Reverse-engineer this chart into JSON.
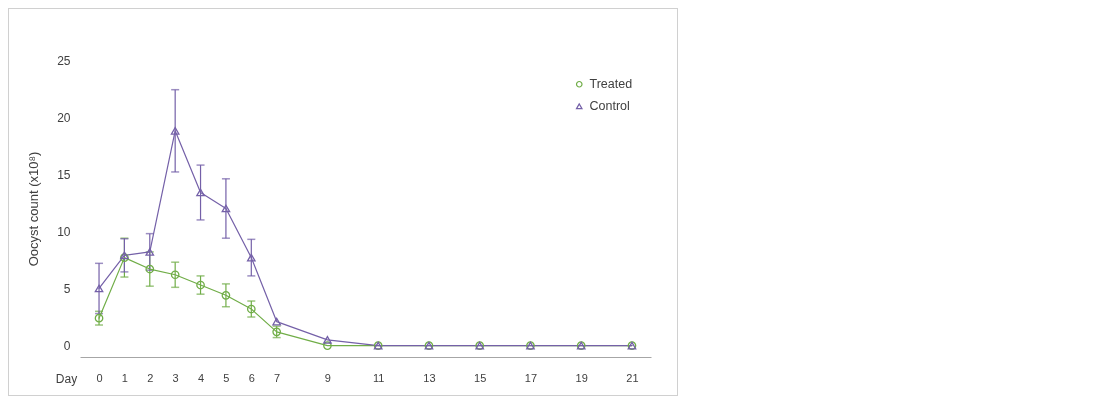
{
  "chart_data": {
    "type": "line",
    "xlabel": "Day",
    "ylabel": "Oocyst count (x10⁸)",
    "x": [
      0,
      1,
      2,
      3,
      4,
      5,
      6,
      7,
      9,
      11,
      13,
      15,
      17,
      19,
      21
    ],
    "xlim": [
      -0.75,
      21.75
    ],
    "xticks": [
      0,
      1,
      2,
      3,
      4,
      5,
      6,
      7,
      9,
      11,
      13,
      15,
      17,
      19,
      21
    ],
    "ylim": [
      -1,
      25
    ],
    "yticks": [
      0,
      5,
      10,
      15,
      20,
      25
    ],
    "legend": "top right",
    "series": [
      {
        "name": "Treated",
        "color": "#70ad47",
        "marker": "circle",
        "values": [
          2.4,
          7.7,
          6.7,
          6.2,
          5.3,
          4.4,
          3.2,
          1.2,
          0,
          0,
          0,
          0,
          0,
          0,
          0
        ],
        "errors": [
          0.6,
          1.7,
          1.5,
          1.1,
          0.8,
          1.0,
          0.7,
          0.5,
          null,
          null,
          null,
          null,
          null,
          null,
          null
        ]
      },
      {
        "name": "Control",
        "color": "#7460a8",
        "marker": "triangle",
        "values": [
          5.0,
          7.9,
          8.2,
          18.8,
          13.4,
          12.0,
          7.7,
          2.1,
          0.5,
          0,
          0,
          0,
          0,
          0,
          0
        ],
        "errors": [
          2.2,
          1.45,
          1.6,
          3.6,
          2.4,
          2.6,
          1.6,
          null,
          null,
          null,
          null,
          null,
          null,
          null,
          null
        ]
      }
    ]
  }
}
